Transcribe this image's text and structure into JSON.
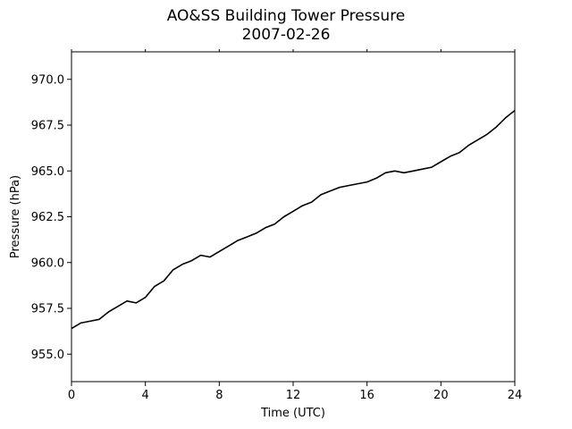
{
  "chart_data": {
    "type": "line",
    "title": "AO&SS Building Tower Pressure",
    "subtitle": "2007-02-26",
    "xlabel": "Time (UTC)",
    "ylabel": "Pressure (hPa)",
    "xlim": [
      0,
      24
    ],
    "ylim": [
      953.5,
      971.5
    ],
    "xticks": [
      0,
      4,
      8,
      12,
      16,
      20,
      24
    ],
    "xtick_labels": [
      "0",
      "4",
      "8",
      "12",
      "16",
      "20",
      "24"
    ],
    "yticks": [
      955.0,
      957.5,
      960.0,
      962.5,
      965.0,
      967.5,
      970.0
    ],
    "ytick_labels": [
      "955.0",
      "957.5",
      "960.0",
      "962.5",
      "965.0",
      "967.5",
      "970.0"
    ],
    "grid": false,
    "line_color": "#000000",
    "series": [
      {
        "x": [
          0,
          0.5,
          1,
          1.5,
          2,
          2.5,
          3,
          3.5,
          4,
          4.5,
          5,
          5.5,
          6,
          6.5,
          7,
          7.5,
          8,
          8.5,
          9,
          9.5,
          10,
          10.5,
          11,
          11.5,
          12,
          12.5,
          13,
          13.5,
          14,
          14.5,
          15,
          15.5,
          16,
          16.5,
          17,
          17.5,
          18,
          18.5,
          19,
          19.5,
          20,
          20.5,
          21,
          21.5,
          22,
          22.5,
          23,
          23.5,
          24
        ],
        "y": [
          956.4,
          956.7,
          956.8,
          956.9,
          957.3,
          957.6,
          957.9,
          957.8,
          958.1,
          958.7,
          959.0,
          959.6,
          959.9,
          960.1,
          960.4,
          960.3,
          960.6,
          960.9,
          961.2,
          961.4,
          961.6,
          961.9,
          962.1,
          962.5,
          962.8,
          963.1,
          963.3,
          963.7,
          963.9,
          964.1,
          964.2,
          964.3,
          964.4,
          964.6,
          964.9,
          965.0,
          964.9,
          965.0,
          965.1,
          965.2,
          965.5,
          965.8,
          966.0,
          966.4,
          966.7,
          967.0,
          967.4,
          967.9,
          968.3
        ]
      }
    ]
  }
}
